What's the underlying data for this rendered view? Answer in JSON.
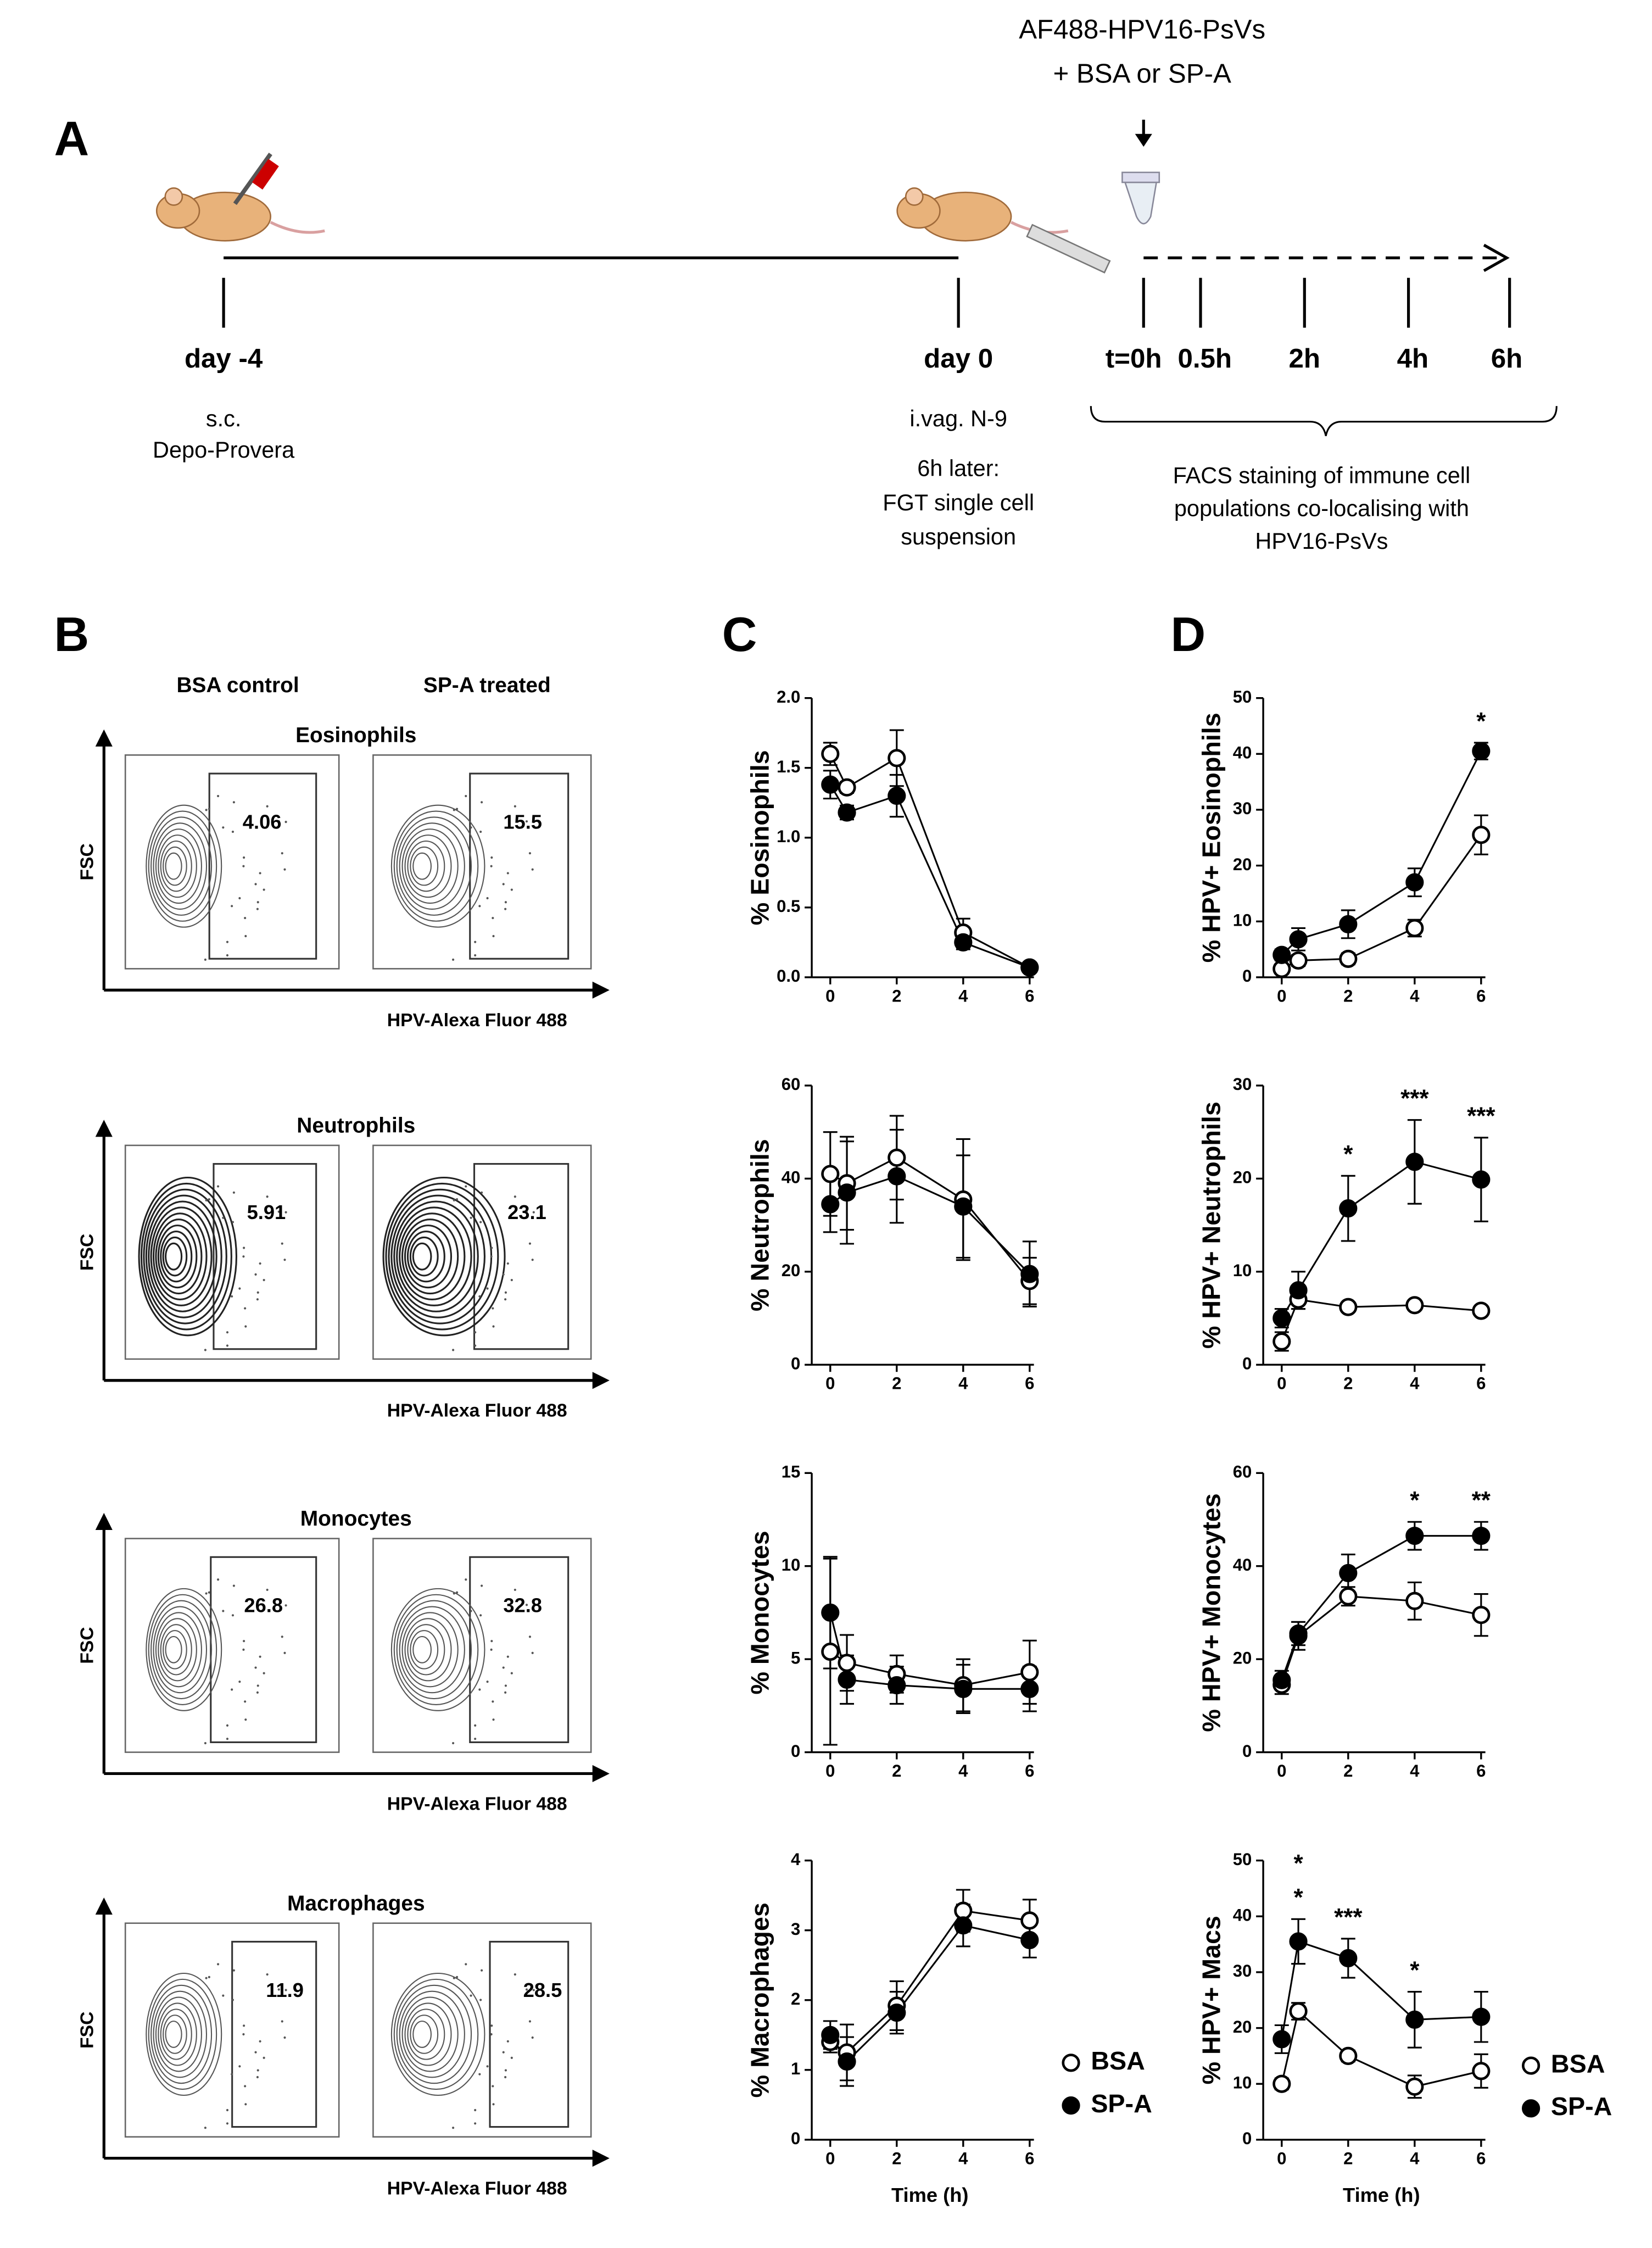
{
  "panel_a": {
    "letter": "A",
    "injection": [
      "AF488-HPV16-PsVs",
      "+ BSA or SP-A"
    ],
    "day_m4": {
      "label": "day -4",
      "notes": [
        "s.c.",
        "Depo-Provera"
      ]
    },
    "day_0": {
      "label": "day 0",
      "notes": [
        "i.vag. N-9",
        "6h later:",
        "FGT single cell",
        "suspension"
      ]
    },
    "time_labels": [
      "t=0h",
      "0.5h",
      "2h",
      "4h",
      "6h"
    ],
    "facs_note": [
      "FACS staining of immune cell",
      "populations co-localising with",
      "HPV16-PsVs"
    ]
  },
  "panel_b": {
    "letter": "B",
    "col_headers": [
      "BSA control",
      "SP-A treated"
    ],
    "y_label": "FSC",
    "x_label": "HPV-Alexa Fluor 488",
    "rows": [
      {
        "title": "Eosinophils",
        "gates": [
          4.06,
          15.5
        ]
      },
      {
        "title": "Neutrophils",
        "gates": [
          5.91,
          23.1
        ]
      },
      {
        "title": "Monocytes",
        "gates": [
          26.8,
          32.8
        ]
      },
      {
        "title": "Macrophages",
        "gates": [
          11.9,
          28.5
        ]
      }
    ]
  },
  "letters": [
    "C",
    "D"
  ],
  "chart_data": [
    {
      "type": "line",
      "y_label": "% Eosinophils",
      "x": [
        0,
        0.5,
        2,
        4,
        6
      ],
      "xlim": [
        0,
        6
      ],
      "xticks": [
        0,
        2,
        4,
        6
      ],
      "ylim": [
        0,
        2
      ],
      "yticks": [
        {
          "value": 0,
          "label": "0.0"
        },
        {
          "value": 0.5,
          "label": "0.5"
        },
        {
          "value": 1,
          "label": "1.0"
        },
        {
          "value": 1.5,
          "label": "1.5"
        },
        {
          "value": 2,
          "label": "2.0"
        }
      ],
      "series": [
        {
          "marker": "open",
          "color": "#000000",
          "values": [
            1.6,
            1.36,
            1.57,
            0.32,
            0.07
          ],
          "errors": [
            0.08,
            0.04,
            0.2,
            0.1,
            0.02
          ]
        },
        {
          "marker": "filled",
          "color": "#000000",
          "values": [
            1.38,
            1.18,
            1.3,
            0.25,
            0.07
          ],
          "errors": [
            0.1,
            0.05,
            0.15,
            0.05,
            0.02
          ]
        }
      ]
    },
    {
      "type": "line",
      "y_label": "% Neutrophils",
      "x": [
        0,
        0.5,
        2,
        4,
        6
      ],
      "xlim": [
        0,
        6
      ],
      "xticks": [
        0,
        2,
        4,
        6
      ],
      "ylim": [
        0,
        60
      ],
      "yticks": [
        0,
        20,
        40,
        60
      ],
      "series": [
        {
          "marker": "open",
          "color": "#000000",
          "values": [
            41,
            39,
            44.5,
            35.5,
            18
          ],
          "errors": [
            9,
            10,
            9,
            13,
            5
          ]
        },
        {
          "marker": "filled",
          "color": "#000000",
          "values": [
            34.5,
            37,
            40.5,
            34,
            19.5
          ],
          "errors": [
            6,
            11,
            10,
            11,
            7
          ]
        }
      ]
    },
    {
      "type": "line",
      "y_label": "% Monocytes",
      "x": [
        0,
        0.5,
        2,
        4,
        6
      ],
      "xlim": [
        0,
        6
      ],
      "xticks": [
        0,
        2,
        4,
        6
      ],
      "ylim": [
        0,
        15
      ],
      "yticks": [
        0,
        5,
        10,
        15
      ],
      "series": [
        {
          "marker": "open",
          "color": "#000000",
          "values": [
            5.4,
            4.8,
            4.2,
            3.6,
            4.3
          ],
          "errors": [
            5,
            1.5,
            1,
            1.4,
            1.7
          ]
        },
        {
          "marker": "filled",
          "color": "#000000",
          "values": [
            7.5,
            3.9,
            3.6,
            3.4,
            3.4
          ],
          "errors": [
            3,
            1.3,
            1,
            1.3,
            1.2
          ]
        }
      ]
    },
    {
      "type": "line",
      "y_label": "% Macrophages",
      "x_label": "Time (h)",
      "x": [
        0,
        0.5,
        2,
        4,
        6
      ],
      "xlim": [
        0,
        6
      ],
      "xticks": [
        0,
        2,
        4,
        6
      ],
      "ylim": [
        0,
        4
      ],
      "yticks": [
        0,
        1,
        2,
        3,
        4
      ],
      "legend": true,
      "series": [
        {
          "name": "BSA",
          "marker": "open",
          "color": "#000000",
          "values": [
            1.4,
            1.25,
            1.92,
            3.28,
            3.14
          ],
          "errors": [
            0.15,
            0.4,
            0.35,
            0.3,
            0.3
          ]
        },
        {
          "name": "SP-A",
          "marker": "filled",
          "color": "#000000",
          "values": [
            1.5,
            1.12,
            1.82,
            3.07,
            2.86
          ],
          "errors": [
            0.2,
            0.35,
            0.3,
            0.3,
            0.25
          ]
        }
      ]
    },
    {
      "type": "line",
      "y_label": "% HPV+ Eosinophils",
      "x": [
        0,
        0.5,
        2,
        4,
        6
      ],
      "xlim": [
        0,
        6
      ],
      "xticks": [
        0,
        2,
        4,
        6
      ],
      "ylim": [
        0,
        50
      ],
      "yticks": [
        0,
        10,
        20,
        30,
        40,
        50
      ],
      "series": [
        {
          "marker": "open",
          "color": "#000000",
          "values": [
            1.5,
            3,
            3.3,
            8.8,
            25.5
          ],
          "errors": [
            0.5,
            1,
            1,
            1.5,
            3.5
          ]
        },
        {
          "marker": "filled",
          "color": "#000000",
          "values": [
            4,
            6.8,
            9.5,
            17,
            40.5
          ],
          "errors": [
            1,
            2,
            2.5,
            2.5,
            1.5
          ]
        }
      ],
      "significance": [
        {
          "x": 6,
          "label": "*"
        }
      ]
    },
    {
      "type": "line",
      "y_label": "% HPV+ Neutrophils",
      "x": [
        0,
        0.5,
        2,
        4,
        6
      ],
      "xlim": [
        0,
        6
      ],
      "xticks": [
        0,
        2,
        4,
        6
      ],
      "ylim": [
        0,
        30
      ],
      "yticks": [
        0,
        10,
        20,
        30
      ],
      "series": [
        {
          "marker": "open",
          "color": "#000000",
          "values": [
            2.5,
            7,
            6.2,
            6.4,
            5.8
          ],
          "errors": [
            1,
            1,
            0.3,
            0.3,
            0.4
          ]
        },
        {
          "marker": "filled",
          "color": "#000000",
          "values": [
            5,
            8,
            16.8,
            21.8,
            19.9
          ],
          "errors": [
            1,
            2,
            3.5,
            4.5,
            4.5
          ]
        }
      ],
      "significance": [
        {
          "x": 2,
          "label": "*"
        },
        {
          "x": 4,
          "label": "***"
        },
        {
          "x": 6,
          "label": "***"
        }
      ]
    },
    {
      "type": "line",
      "y_label": "% HPV+ Monocytes",
      "x": [
        0,
        0.5,
        2,
        4,
        6
      ],
      "xlim": [
        0,
        6
      ],
      "xticks": [
        0,
        2,
        4,
        6
      ],
      "ylim": [
        0,
        60
      ],
      "yticks": [
        0,
        20,
        40,
        60
      ],
      "series": [
        {
          "marker": "open",
          "color": "#000000",
          "values": [
            14.5,
            25,
            33.5,
            32.5,
            29.5
          ],
          "errors": [
            2,
            3,
            2,
            4,
            4.5
          ]
        },
        {
          "marker": "filled",
          "color": "#000000",
          "values": [
            15.5,
            25.5,
            38.5,
            46.5,
            46.5
          ],
          "errors": [
            2,
            2.5,
            4,
            3,
            3
          ]
        }
      ],
      "significance": [
        {
          "x": 4,
          "label": "*"
        },
        {
          "x": 6,
          "label": "**"
        }
      ]
    },
    {
      "type": "line",
      "y_label": "% HPV+ Macs",
      "x_label": "Time (h)",
      "x": [
        0,
        0.5,
        2,
        4,
        6
      ],
      "xlim": [
        0,
        6
      ],
      "xticks": [
        0,
        2,
        4,
        6
      ],
      "ylim": [
        0,
        50
      ],
      "yticks": [
        0,
        10,
        20,
        30,
        40,
        50
      ],
      "legend": true,
      "series": [
        {
          "name": "BSA",
          "marker": "open",
          "color": "#000000",
          "values": [
            10,
            23,
            15,
            9.5,
            12.3
          ],
          "errors": [
            1,
            1.5,
            1,
            2,
            3
          ]
        },
        {
          "name": "SP-A",
          "marker": "filled",
          "color": "#000000",
          "values": [
            18,
            35.5,
            32.5,
            21.5,
            22
          ],
          "errors": [
            2.5,
            4,
            3.5,
            5,
            4.5
          ]
        }
      ],
      "significance": [
        {
          "x": 0.5,
          "label": "*"
        },
        {
          "x": 0.5,
          "label": "*"
        },
        {
          "x": 2,
          "label": "***"
        },
        {
          "x": 4,
          "label": "*"
        }
      ]
    }
  ]
}
